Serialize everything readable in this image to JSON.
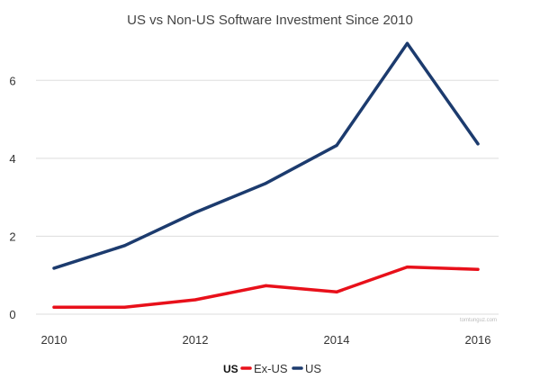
{
  "chart_data": {
    "type": "line",
    "title": "US vs Non-US Software Investment Since 2010",
    "xlabel": "",
    "ylabel": "",
    "x": [
      2010,
      2011,
      2012,
      2013,
      2014,
      2015,
      2016
    ],
    "x_tick_labels": [
      "2010",
      "2012",
      "2014",
      "2016"
    ],
    "y_tick_labels": [
      "0",
      "2",
      "4",
      "6"
    ],
    "ylim": [
      0,
      7
    ],
    "grid": true,
    "legend_position": "bottom",
    "legend_title": "US",
    "series": [
      {
        "name": "Ex-US",
        "color": "#e8101a",
        "values": [
          0.18,
          0.18,
          0.37,
          0.73,
          0.57,
          1.21,
          1.15
        ]
      },
      {
        "name": "US",
        "color": "#1c3b6e",
        "values": [
          1.18,
          1.76,
          2.61,
          3.36,
          4.33,
          6.95,
          4.37
        ]
      }
    ],
    "watermark": "tomtunguz.com"
  }
}
